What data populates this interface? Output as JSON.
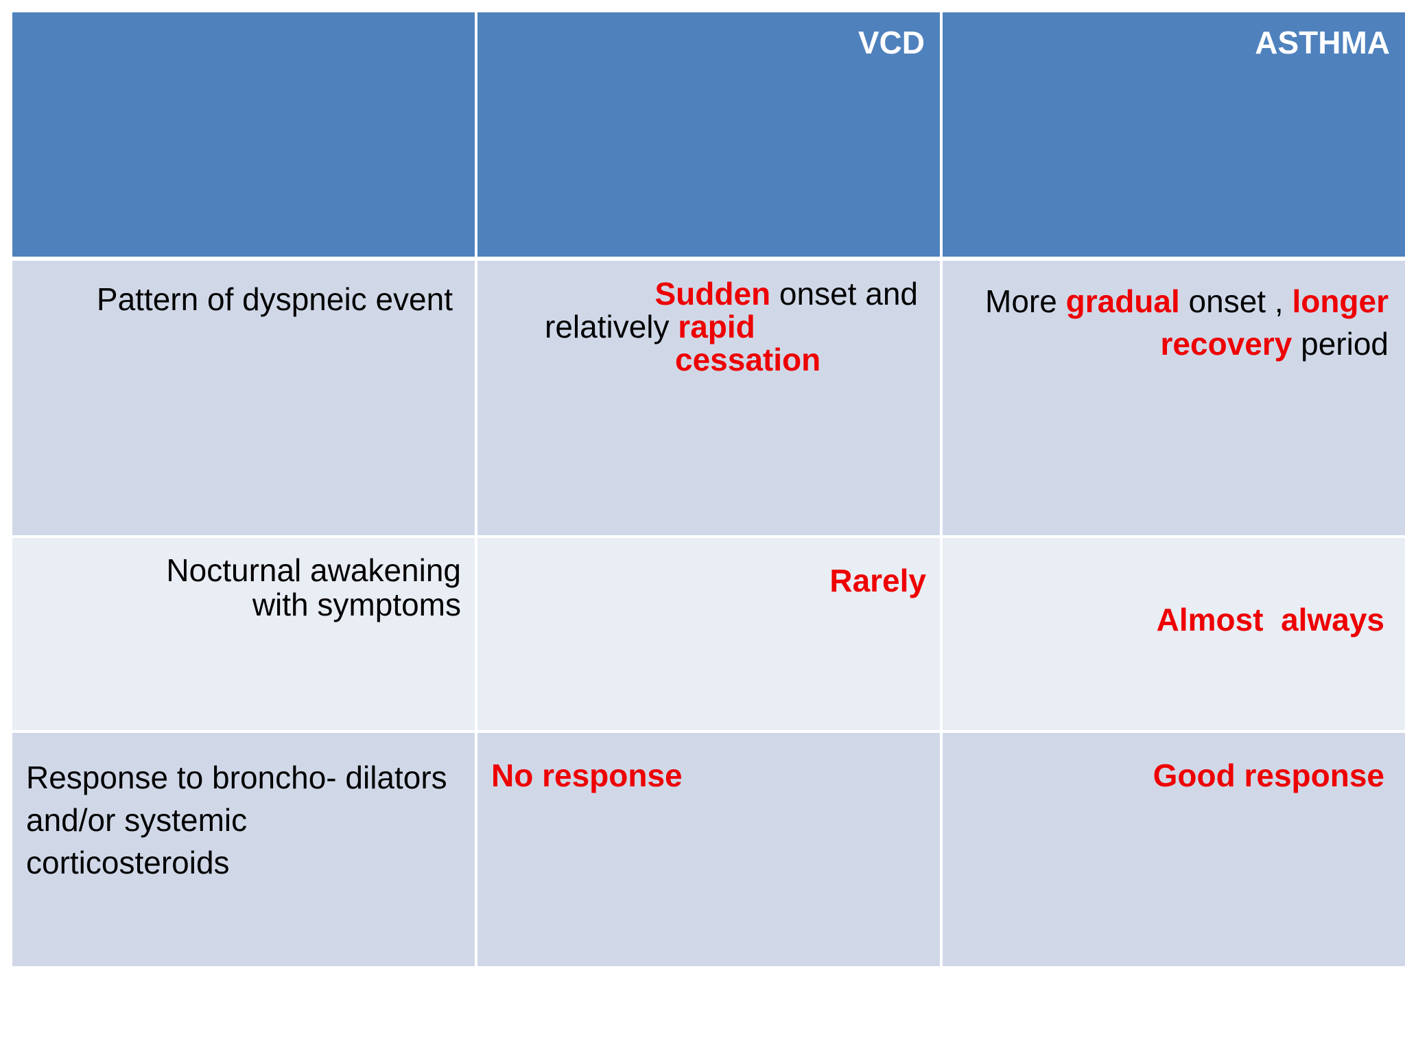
{
  "table": {
    "header": {
      "col1": "",
      "col2": "VCD",
      "col3": "ASTHMA"
    },
    "rows": [
      {
        "feature": "Pattern of dyspneic event",
        "vcd": {
          "p1": "Sudden",
          "p2": " onset and",
          "p3": "relatively ",
          "p4": "rapid",
          "p5": "cessation"
        },
        "asthma": {
          "p1": "More ",
          "p2": "gradual",
          "p3": " onset , ",
          "p4": "longer",
          "p5": "recovery",
          "p6": " period"
        }
      },
      {
        "feature_line1": "Nocturnal awakening",
        "feature_line2": "with symptoms",
        "vcd": "Rarely",
        "asthma": "Almost  always"
      },
      {
        "feature_line1": "Response to broncho- dilators",
        "feature_line2": "and/or systemic",
        "feature_line3": "corticosteroids",
        "vcd": "No response",
        "asthma": "Good response"
      }
    ]
  },
  "colors": {
    "header_bg": "#4f81bd",
    "row_dark_bg": "#d0d8e8",
    "row_light_bg": "#e9edf4",
    "emphasis": "#ee0000"
  }
}
